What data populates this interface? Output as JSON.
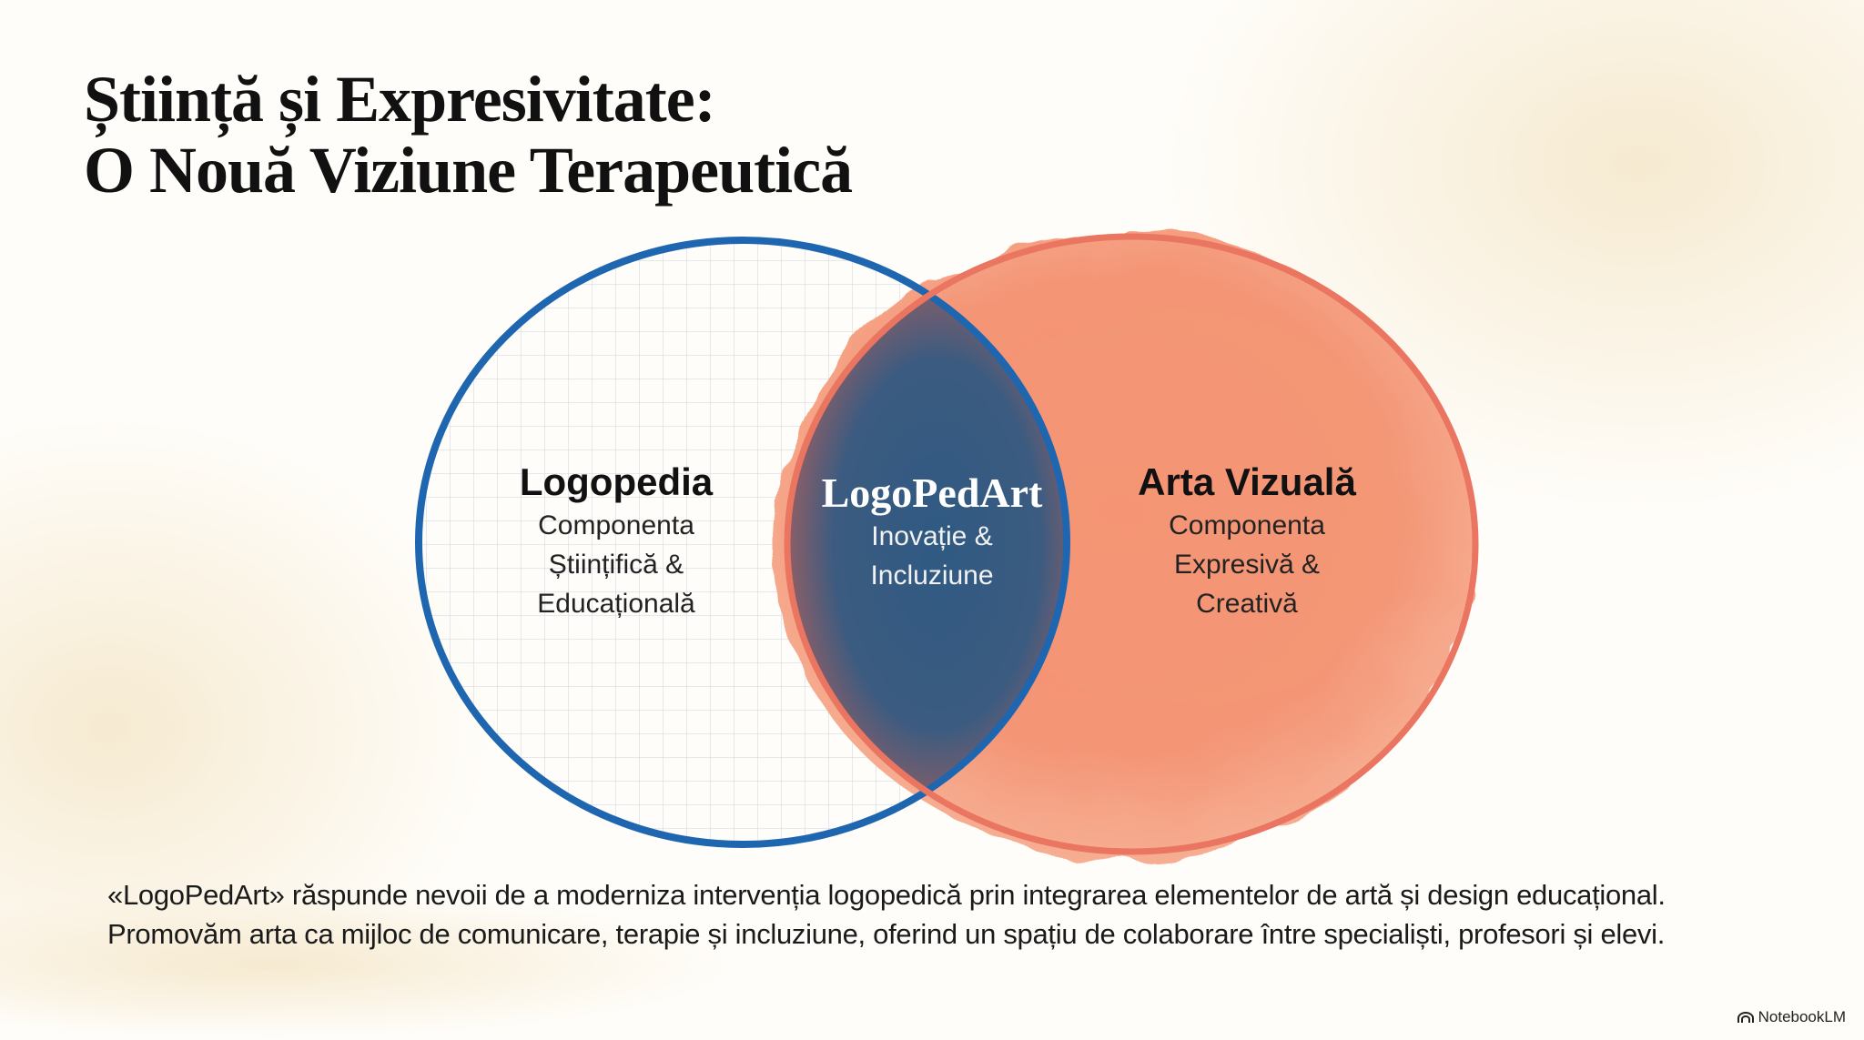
{
  "title": {
    "line1": "Știință și Expresivitate:",
    "line2": "O Nouă Viziune Terapeutică"
  },
  "venn": {
    "left": {
      "heading": "Logopedia",
      "lines": [
        "Componenta",
        "Științifică &",
        "Educațională"
      ],
      "color": "#1f66b0"
    },
    "center": {
      "heading": "LogoPedArt",
      "lines": [
        "Inovație &",
        "Incluziune"
      ],
      "color": "#2f5c85"
    },
    "right": {
      "heading": "Arta Vizuală",
      "lines": [
        "Componenta",
        "Expresivă &",
        "Creativă"
      ],
      "color": "#ef7a5f"
    }
  },
  "body_text": "«LogoPedArt» răspunde nevoii de a moderniza intervenția logopedică prin integrarea elementelor de artă și design educațional. Promovăm arta ca mijloc de comunicare, terapie și incluziune, oferind un spațiu de colaborare între specialiști, profesori și elevi.",
  "brand": {
    "label": "NotebookLM",
    "icon": "notebooklm-logo-icon"
  }
}
